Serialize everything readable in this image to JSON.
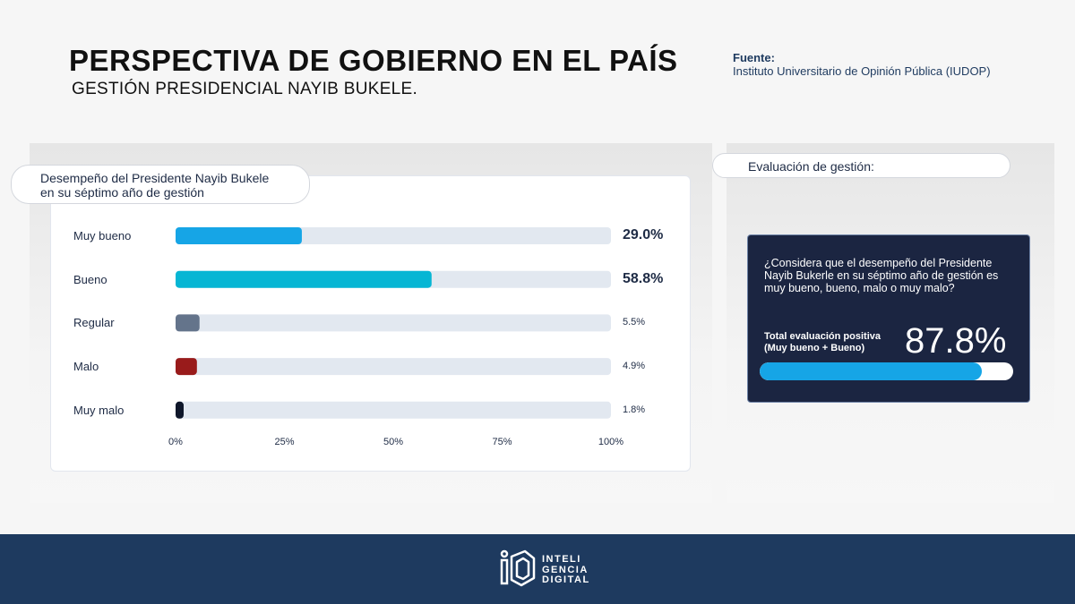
{
  "header": {
    "title": "PERSPECTIVA DE GOBIERNO EN EL PAÍS",
    "subtitle": "GESTIÓN PRESIDENCIAL NAYIB BUKELE.",
    "source_label": "Fuente:",
    "source_text": "Instituto Universitario de Opinión Pública (IUDOP)"
  },
  "left_panel": {
    "pill_line1": "Desempeño del Presidente Nayib Bukele",
    "pill_line2": "en su séptimo año de gestión"
  },
  "chart_data": {
    "type": "bar",
    "orientation": "horizontal",
    "title": "Desempeño del Presidente Nayib Bukele en su séptimo año de gestión",
    "categories": [
      "Muy bueno",
      "Bueno",
      "Regular",
      "Malo",
      "Muy malo"
    ],
    "values": [
      29.0,
      58.8,
      5.5,
      4.9,
      1.8
    ],
    "value_labels": [
      "29.0%",
      "58.8%",
      "5.5%",
      "4.9%",
      "1.8%"
    ],
    "colors": [
      "#16a5e6",
      "#06b6d4",
      "#64748b",
      "#991b1b",
      "#0f172a"
    ],
    "track_color": "#e2e8f0",
    "xlim": [
      0,
      100
    ],
    "xticks": [
      0,
      25,
      50,
      75,
      100
    ],
    "xtick_labels": [
      "0%",
      "25%",
      "50%",
      "75%",
      "100%"
    ],
    "grid": false,
    "legend": "none"
  },
  "right_panel": {
    "pill_label": "Evaluación de gestión:",
    "question": "¿Considera que el desempeño del Presidente Nayib Bukerle en su séptimo año de gestión es muy bueno, bueno, malo o muy malo?",
    "total_line1": "Total evaluación positiva",
    "total_line2": "(Muy bueno + Bueno)",
    "total_value_label": "87.8%",
    "total_value": 87.8,
    "bar_color": "#16a5e6"
  },
  "footer": {
    "logo_line1": "INTELI",
    "logo_line2": "GENCIA",
    "logo_line3": "DIGITAL"
  }
}
